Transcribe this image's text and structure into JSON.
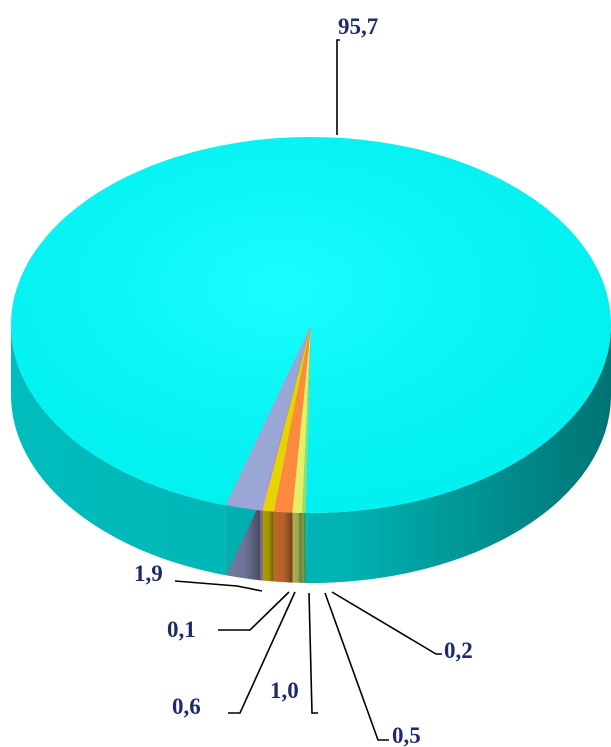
{
  "chart_data": {
    "type": "pie",
    "style": "3d",
    "slices": [
      {
        "value": 95.7,
        "label": "95,7",
        "color": "#00ffff"
      },
      {
        "value": 1.9,
        "label": "1,9",
        "color": "#9aa6d6"
      },
      {
        "value": 0.1,
        "label": "0,1",
        "color": "#c78ad9"
      },
      {
        "value": 0.6,
        "label": "0,6",
        "color": "#e6d400"
      },
      {
        "value": 1.0,
        "label": "1,0",
        "color": "#ff8a3c"
      },
      {
        "value": 0.5,
        "label": "0,5",
        "color": "#e3f066"
      },
      {
        "value": 0.2,
        "label": "0,2",
        "color": "#8fe06a"
      }
    ],
    "title": "",
    "legend": "none"
  }
}
